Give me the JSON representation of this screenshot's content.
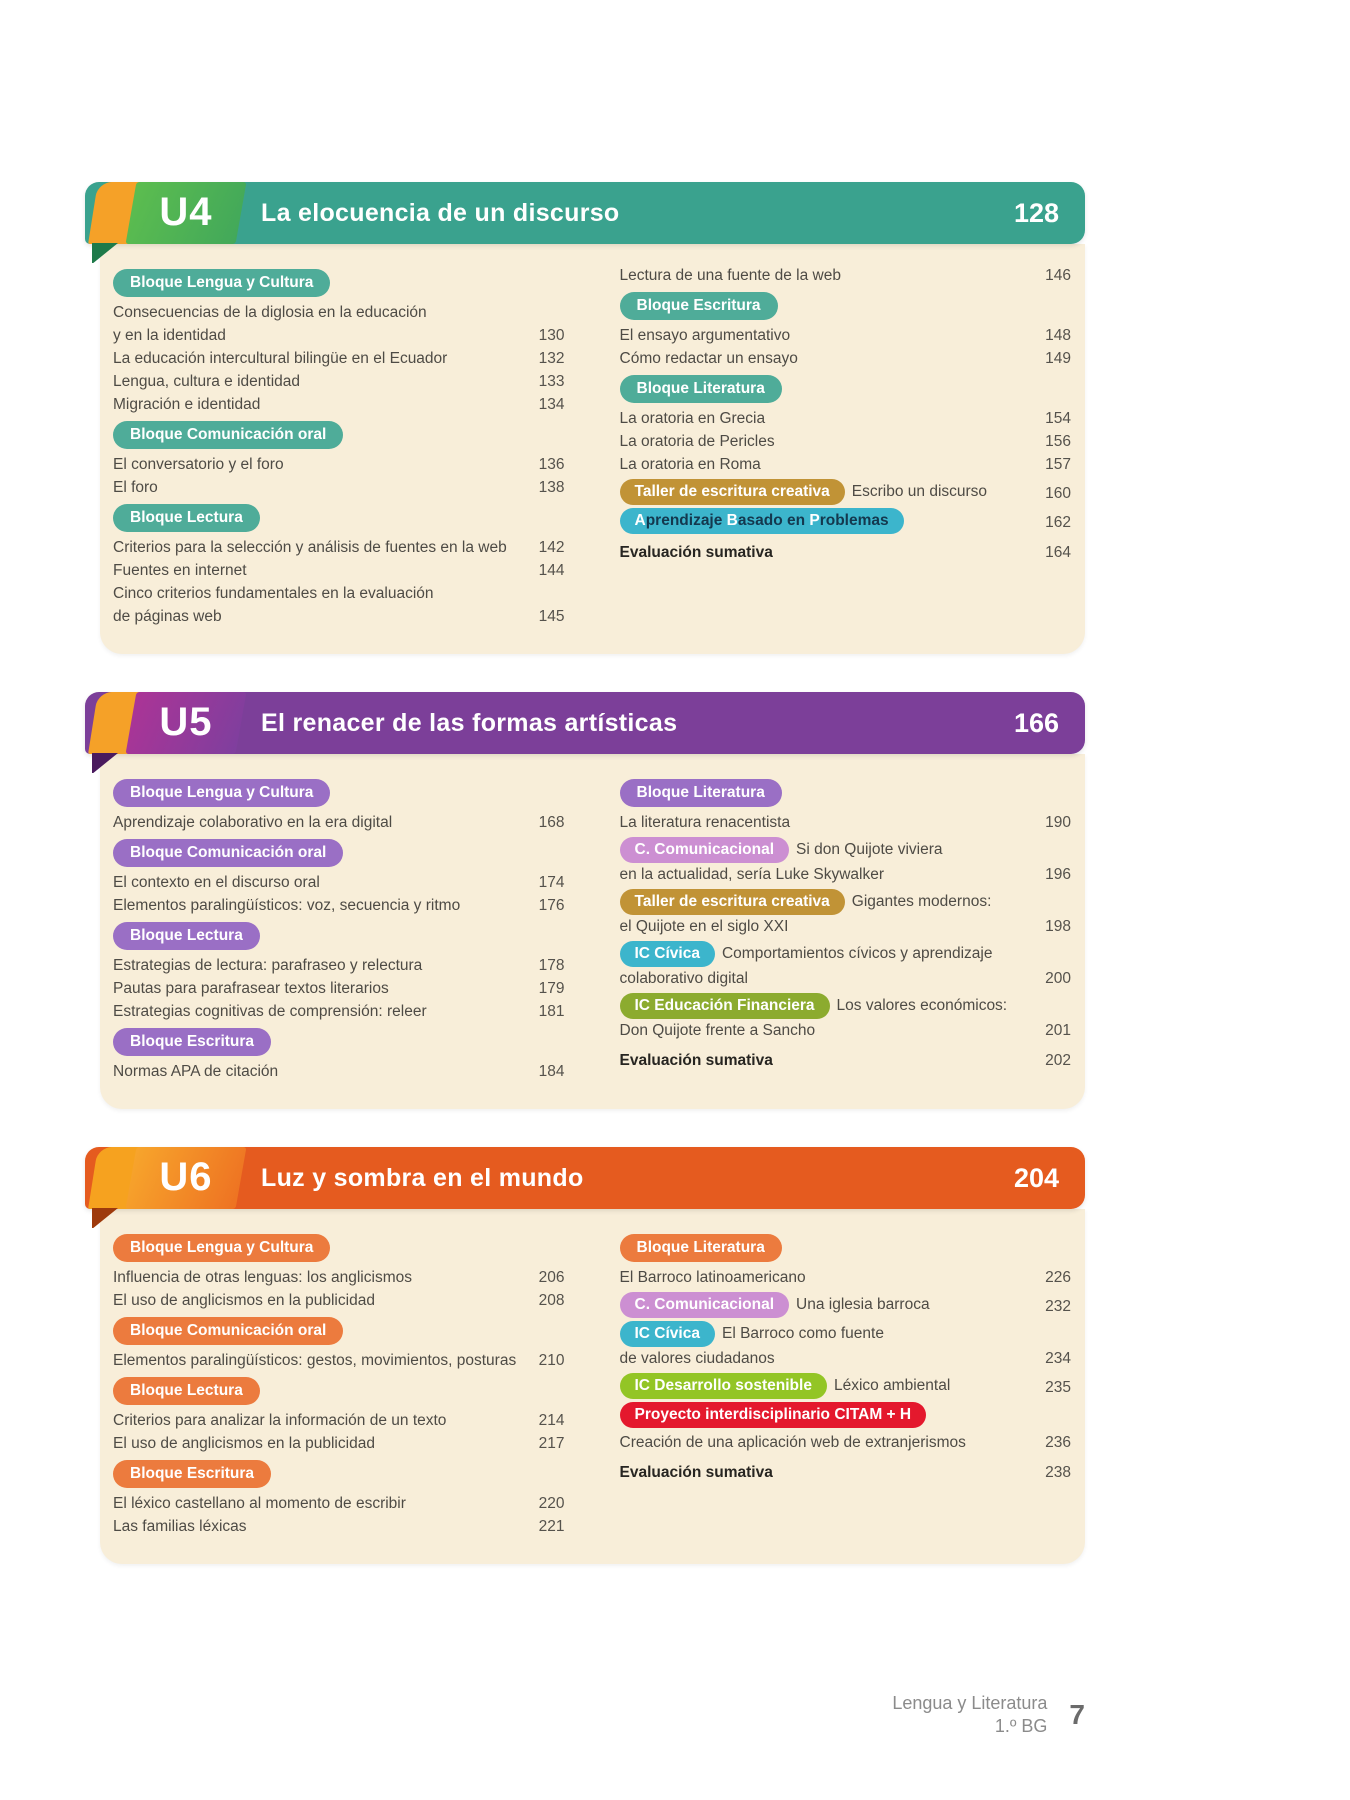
{
  "page_footer": {
    "course": "Lengua y Literatura",
    "grade": "1.º BG",
    "page_number": "7"
  },
  "pill_colors": {
    "gold": "#c19336",
    "cyan": "#3cb5cc",
    "pink": "#cc8fd2",
    "olive": "#8cab2f",
    "lime": "#93c525",
    "red": "#e4182d"
  },
  "units": [
    {
      "id": "u4",
      "label": "U4",
      "title": "La elocuencia de un discurso",
      "page": "128",
      "theme": {
        "banner": "#3aa28e",
        "pill": "#4fac99",
        "tab_from": "#5cbd4f",
        "tab_to": "#42a85a",
        "fold": "#1e7a4a",
        "accent": "#f5a128"
      },
      "left": [
        {
          "kind": "pill",
          "label": "Bloque Lengua y Cultura"
        },
        {
          "kind": "entry",
          "lines": [
            "Consecuencias de la diglosia en la educación",
            "y en la identidad"
          ],
          "page": "130"
        },
        {
          "kind": "entry",
          "lines": [
            "La educación intercultural bilingüe en el Ecuador"
          ],
          "page": "132"
        },
        {
          "kind": "entry",
          "lines": [
            "Lengua, cultura e identidad"
          ],
          "page": "133"
        },
        {
          "kind": "entry",
          "lines": [
            "Migración e identidad"
          ],
          "page": "134"
        },
        {
          "kind": "pill",
          "label": "Bloque Comunicación oral"
        },
        {
          "kind": "entry",
          "lines": [
            "El conversatorio y el foro"
          ],
          "page": "136"
        },
        {
          "kind": "entry",
          "lines": [
            "El foro"
          ],
          "page": "138"
        },
        {
          "kind": "pill",
          "label": "Bloque Lectura"
        },
        {
          "kind": "entry",
          "lines": [
            "Criterios para la selección y análisis de fuentes en la web"
          ],
          "page": "142"
        },
        {
          "kind": "entry",
          "lines": [
            "Fuentes en internet"
          ],
          "page": "144"
        },
        {
          "kind": "entry",
          "lines": [
            "Cinco criterios fundamentales en la evaluación",
            "de páginas web"
          ],
          "page": "145"
        }
      ],
      "right": [
        {
          "kind": "entry",
          "lines": [
            "Lectura de una fuente de la web"
          ],
          "page": "146"
        },
        {
          "kind": "pill",
          "label": "Bloque Escritura"
        },
        {
          "kind": "entry",
          "lines": [
            "El ensayo argumentativo"
          ],
          "page": "148"
        },
        {
          "kind": "entry",
          "lines": [
            "Cómo redactar un ensayo"
          ],
          "page": "149"
        },
        {
          "kind": "pill",
          "label": "Bloque Literatura"
        },
        {
          "kind": "entry",
          "lines": [
            "La oratoria en Grecia"
          ],
          "page": "154"
        },
        {
          "kind": "entry",
          "lines": [
            "La oratoria de Pericles"
          ],
          "page": "156"
        },
        {
          "kind": "entry",
          "lines": [
            "La oratoria en Roma"
          ],
          "page": "157"
        },
        {
          "kind": "pill_entry",
          "pill": "Taller de escritura creativa",
          "color": "gold",
          "lines": [
            "Escribo un discurso"
          ],
          "page": "160"
        },
        {
          "kind": "abp",
          "color": "cyan",
          "segments": [
            "A",
            "prendizaje ",
            "B",
            "asado en ",
            "P",
            "roblemas"
          ],
          "page": "162"
        },
        {
          "kind": "bold_entry",
          "text": "Evaluación sumativa",
          "page": "164"
        }
      ]
    },
    {
      "id": "u5",
      "label": "U5",
      "title": "El renacer de las formas artísticas",
      "page": "166",
      "theme": {
        "banner": "#7c3f99",
        "pill": "#9a6fc5",
        "tab_from": "#ab3496",
        "tab_to": "#7f3f9e",
        "fold": "#4a1a5e",
        "accent": "#f5a128"
      },
      "left": [
        {
          "kind": "pill",
          "label": "Bloque Lengua y Cultura"
        },
        {
          "kind": "entry",
          "lines": [
            "Aprendizaje colaborativo en la era digital"
          ],
          "page": "168"
        },
        {
          "kind": "pill",
          "label": "Bloque Comunicación oral"
        },
        {
          "kind": "entry",
          "lines": [
            "El contexto en el discurso oral"
          ],
          "page": "174"
        },
        {
          "kind": "entry",
          "lines": [
            "Elementos paralingüísticos: voz, secuencia y ritmo"
          ],
          "page": "176"
        },
        {
          "kind": "pill",
          "label": "Bloque Lectura"
        },
        {
          "kind": "entry",
          "lines": [
            "Estrategias de lectura: parafraseo y relectura"
          ],
          "page": "178"
        },
        {
          "kind": "entry",
          "lines": [
            "Pautas para parafrasear textos literarios"
          ],
          "page": "179"
        },
        {
          "kind": "entry",
          "lines": [
            "Estrategias cognitivas de comprensión: releer"
          ],
          "page": "181"
        },
        {
          "kind": "pill",
          "label": "Bloque Escritura"
        },
        {
          "kind": "entry",
          "lines": [
            "Normas APA de citación"
          ],
          "page": "184"
        }
      ],
      "right": [
        {
          "kind": "pill",
          "label": "Bloque Literatura"
        },
        {
          "kind": "entry",
          "lines": [
            "La literatura renacentista"
          ],
          "page": "190"
        },
        {
          "kind": "pill_entry",
          "pill": "C. Comunicacional",
          "color": "pink",
          "lines": [
            "Si don Quijote viviera",
            "en la actualidad, sería Luke Skywalker"
          ],
          "page": "196"
        },
        {
          "kind": "pill_entry",
          "pill": "Taller de escritura creativa",
          "color": "gold",
          "lines": [
            "Gigantes modernos:",
            "el Quijote en el siglo XXI"
          ],
          "page": "198"
        },
        {
          "kind": "pill_entry",
          "pill": "IC Cívica",
          "color": "cyan",
          "lines": [
            "Comportamientos cívicos y aprendizaje",
            "colaborativo digital"
          ],
          "page": "200"
        },
        {
          "kind": "pill_entry",
          "pill": "IC Educación Financiera",
          "color": "olive",
          "lines": [
            "Los valores económicos:",
            "Don Quijote frente a Sancho"
          ],
          "page": "201"
        },
        {
          "kind": "bold_entry",
          "text": "Evaluación sumativa",
          "page": "202"
        }
      ]
    },
    {
      "id": "u6",
      "label": "U6",
      "title": "Luz y sombra en el mundo",
      "page": "204",
      "theme": {
        "banner": "#e55b1f",
        "pill": "#ec7b3e",
        "tab_from": "#f7a52c",
        "tab_to": "#ee7222",
        "fold": "#9e3a0c",
        "accent": "#f6a21f"
      },
      "left": [
        {
          "kind": "pill",
          "label": "Bloque Lengua y Cultura"
        },
        {
          "kind": "entry",
          "lines": [
            "Influencia de otras lenguas: los anglicismos"
          ],
          "page": "206"
        },
        {
          "kind": "entry",
          "lines": [
            "El uso de anglicismos en la publicidad"
          ],
          "page": "208"
        },
        {
          "kind": "pill",
          "label": "Bloque Comunicación oral"
        },
        {
          "kind": "entry",
          "lines": [
            "Elementos paralingüísticos: gestos, movimientos, posturas"
          ],
          "page": "210"
        },
        {
          "kind": "pill",
          "label": "Bloque Lectura"
        },
        {
          "kind": "entry",
          "lines": [
            "Criterios para analizar la información de un texto"
          ],
          "page": "214"
        },
        {
          "kind": "entry",
          "lines": [
            "El uso de anglicismos en la publicidad"
          ],
          "page": "217"
        },
        {
          "kind": "pill",
          "label": "Bloque Escritura"
        },
        {
          "kind": "entry",
          "lines": [
            "El léxico castellano al momento de escribir"
          ],
          "page": "220"
        },
        {
          "kind": "entry",
          "lines": [
            "Las familias léxicas"
          ],
          "page": "221"
        }
      ],
      "right": [
        {
          "kind": "pill",
          "label": "Bloque Literatura"
        },
        {
          "kind": "entry",
          "lines": [
            "El Barroco latinoamericano"
          ],
          "page": "226"
        },
        {
          "kind": "pill_entry",
          "pill": "C. Comunicacional",
          "color": "pink",
          "lines": [
            "Una iglesia barroca"
          ],
          "page": "232"
        },
        {
          "kind": "pill_entry",
          "pill": "IC Cívica",
          "color": "cyan",
          "lines": [
            "El Barroco como fuente",
            "de valores ciudadanos"
          ],
          "page": "234"
        },
        {
          "kind": "pill_entry",
          "pill": "IC Desarrollo sostenible",
          "color": "lime",
          "lines": [
            "Léxico ambiental"
          ],
          "page": "235"
        },
        {
          "kind": "pill_entry",
          "pill": "Proyecto interdisciplinario CITAM + H",
          "color": "red",
          "lines": [],
          "page": ""
        },
        {
          "kind": "entry",
          "lines": [
            "Creación de una aplicación web de extranjerismos"
          ],
          "page": "236"
        },
        {
          "kind": "bold_entry",
          "text": "Evaluación sumativa",
          "page": "238"
        }
      ]
    }
  ]
}
